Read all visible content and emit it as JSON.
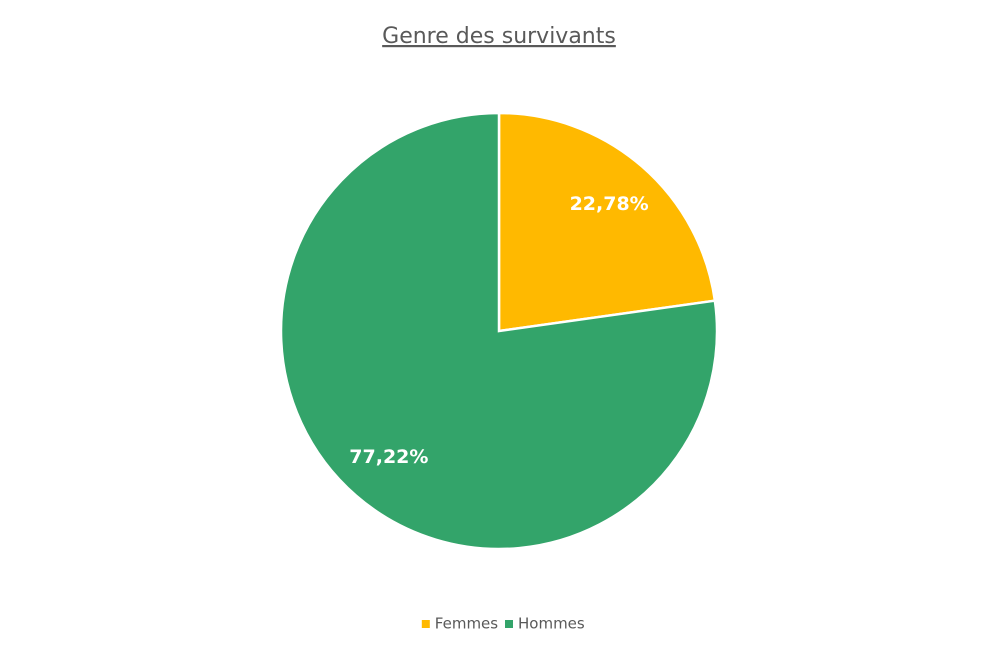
{
  "chart_data": {
    "type": "pie",
    "title": "Genre des survivants",
    "categories": [
      "Femmes",
      "Hommes"
    ],
    "values": [
      22.78,
      77.22
    ],
    "value_labels": [
      "22,78%",
      "77,22%"
    ],
    "colors": [
      "#ffb900",
      "#33a46a"
    ],
    "legend": "bottom"
  }
}
